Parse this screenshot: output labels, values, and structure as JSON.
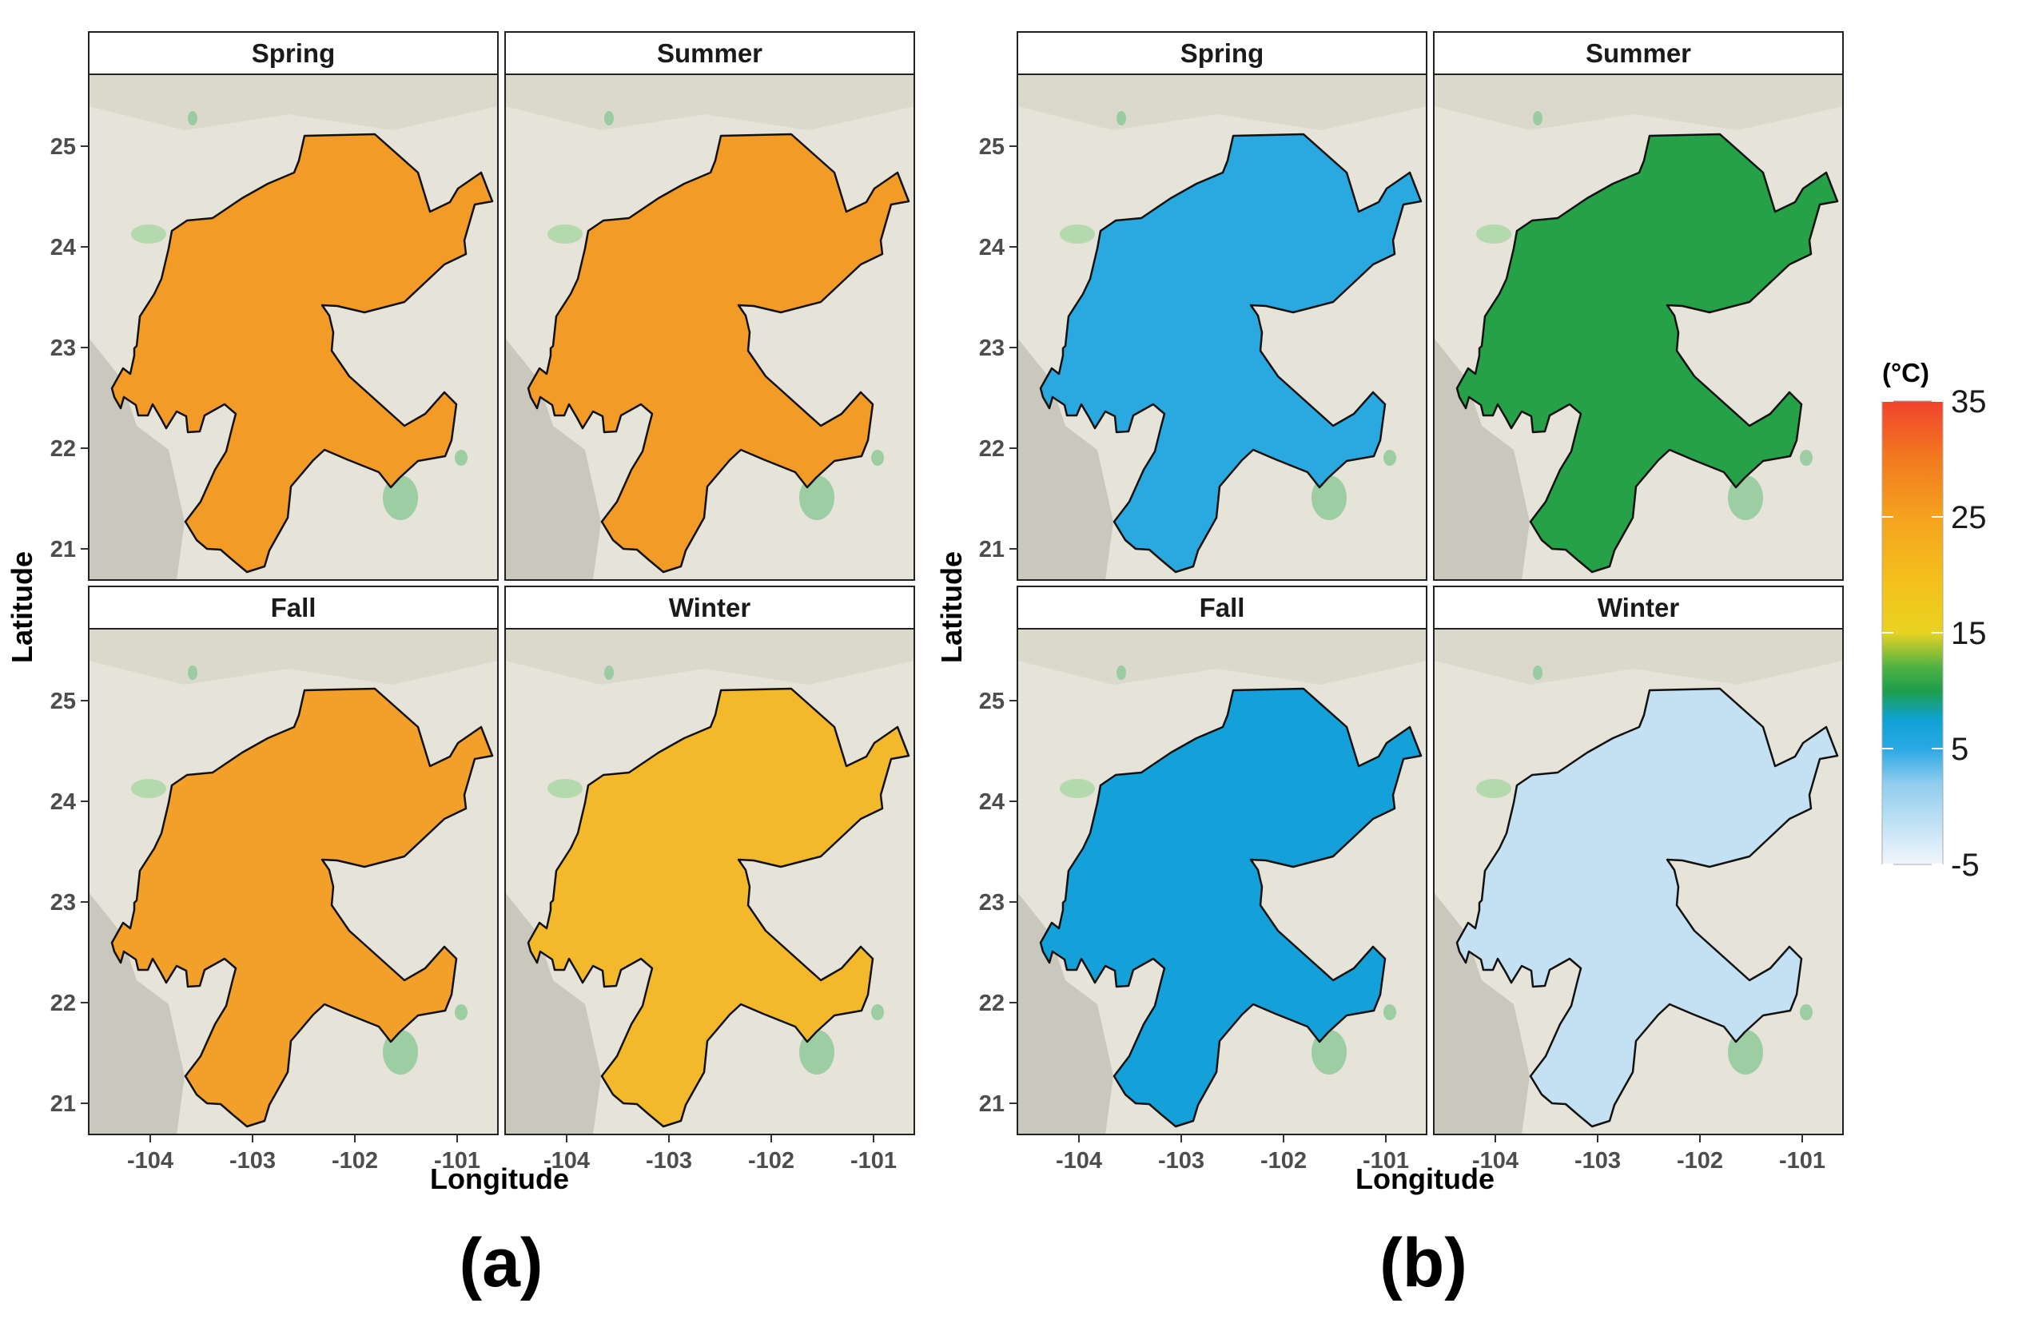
{
  "legend": {
    "title": "(°C)",
    "ticks": [
      "35",
      "25",
      "15",
      "5",
      "-5"
    ],
    "range": [
      -5,
      35
    ],
    "stops": [
      {
        "value": 35,
        "color": "#f0432d"
      },
      {
        "value": 30,
        "color": "#f27a1f"
      },
      {
        "value": 25,
        "color": "#f5a21f"
      },
      {
        "value": 19,
        "color": "#f3c21c"
      },
      {
        "value": 15,
        "color": "#e9d222"
      },
      {
        "value": 12,
        "color": "#4db244"
      },
      {
        "value": 10,
        "color": "#1e9e4a"
      },
      {
        "value": 7.5,
        "color": "#0fa2d6"
      },
      {
        "value": 5,
        "color": "#2aa8e4"
      },
      {
        "value": 2,
        "color": "#8fcdee"
      },
      {
        "value": -5,
        "color": "#f1f6fc"
      }
    ]
  },
  "axes": {
    "xlabel": "Longitude",
    "ylabel": "Latitude",
    "xticks": [
      "-104",
      "-103",
      "-102",
      "-101"
    ],
    "yticks": [
      "25",
      "24",
      "23",
      "22",
      "21"
    ]
  },
  "figures": [
    {
      "letter": "(a)",
      "panels": [
        {
          "title": "Spring",
          "fill": "#f29b26"
        },
        {
          "title": "Summer",
          "fill": "#f29b26"
        },
        {
          "title": "Fall",
          "fill": "#f2a029"
        },
        {
          "title": "Winter",
          "fill": "#f4b92a"
        }
      ]
    },
    {
      "letter": "(b)",
      "panels": [
        {
          "title": "Spring",
          "fill": "#2aa8e0"
        },
        {
          "title": "Summer",
          "fill": "#25a147"
        },
        {
          "title": "Fall",
          "fill": "#14a0d8"
        },
        {
          "title": "Winter",
          "fill": "#c4e1f3"
        }
      ]
    }
  ]
}
